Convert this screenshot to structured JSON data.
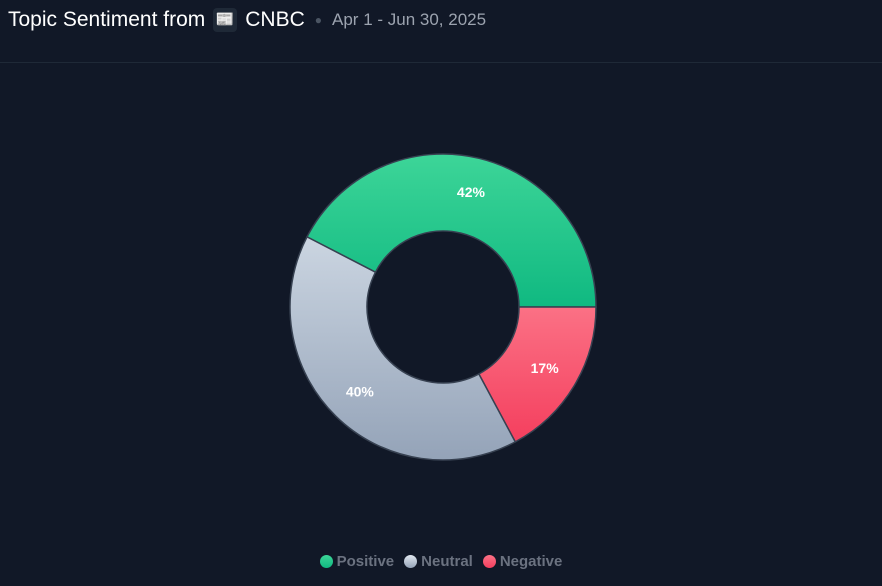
{
  "header": {
    "title": "Topic Sentiment from",
    "source_icon": "newspaper-icon",
    "source": "CNBC",
    "date_range": "Apr 1 - Jun 30, 2025"
  },
  "chart_data": {
    "type": "pie",
    "donut": true,
    "categories": [
      "Positive",
      "Neutral",
      "Negative"
    ],
    "values": [
      42,
      40,
      17
    ],
    "labels": [
      "42%",
      "40%",
      "17%"
    ],
    "colors": {
      "Positive": "#10b981",
      "Neutral": "#94a3b8",
      "Negative": "#f43f5e"
    },
    "legend": "bottom"
  }
}
